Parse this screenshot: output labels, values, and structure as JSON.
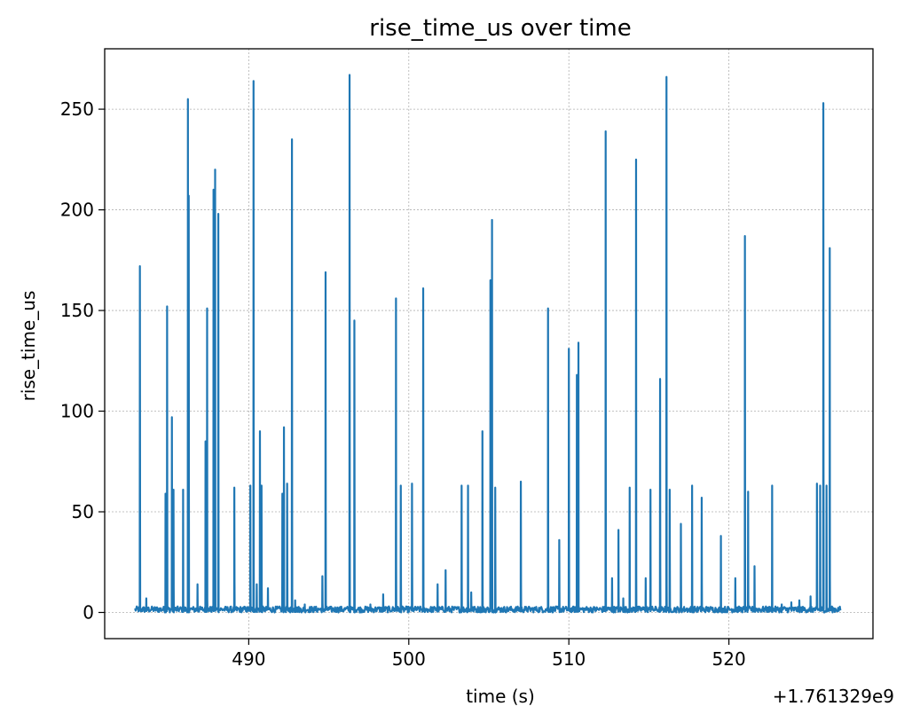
{
  "chart_data": {
    "type": "line",
    "title": "rise_time_us over time",
    "xlabel": "time (s)",
    "ylabel": "rise_time_us",
    "x_offset_label": "+1.761329e9",
    "xlim": [
      481.0,
      529.0
    ],
    "ylim": [
      -13,
      280
    ],
    "xticks": [
      490,
      500,
      510,
      520
    ],
    "yticks": [
      0,
      50,
      100,
      150,
      200,
      250
    ],
    "grid": true,
    "x_range": [
      482.9,
      527.0
    ],
    "baseline_range": [
      0,
      3
    ],
    "series": [
      {
        "color": "#1f77b4",
        "spikes": [
          [
            483.2,
            172
          ],
          [
            483.6,
            7
          ],
          [
            484.8,
            59
          ],
          [
            484.9,
            152
          ],
          [
            485.2,
            97
          ],
          [
            485.3,
            61
          ],
          [
            485.9,
            61
          ],
          [
            486.2,
            255
          ],
          [
            486.25,
            207
          ],
          [
            486.8,
            14
          ],
          [
            487.3,
            85
          ],
          [
            487.4,
            151
          ],
          [
            487.8,
            210
          ],
          [
            487.9,
            220
          ],
          [
            488.1,
            198
          ],
          [
            489.1,
            62
          ],
          [
            490.1,
            63
          ],
          [
            490.3,
            264
          ],
          [
            490.5,
            14
          ],
          [
            490.7,
            90
          ],
          [
            490.8,
            63
          ],
          [
            491.2,
            12
          ],
          [
            492.1,
            59
          ],
          [
            492.2,
            92
          ],
          [
            492.4,
            64
          ],
          [
            492.7,
            235
          ],
          [
            492.9,
            6
          ],
          [
            493.5,
            4
          ],
          [
            494.6,
            18
          ],
          [
            494.8,
            169
          ],
          [
            496.3,
            267
          ],
          [
            496.6,
            145
          ],
          [
            497.6,
            4
          ],
          [
            498.4,
            9
          ],
          [
            499.2,
            156
          ],
          [
            499.5,
            63
          ],
          [
            500.2,
            64
          ],
          [
            500.9,
            161
          ],
          [
            501.8,
            14
          ],
          [
            502.3,
            21
          ],
          [
            503.3,
            63
          ],
          [
            503.7,
            63
          ],
          [
            503.9,
            10
          ],
          [
            504.6,
            90
          ],
          [
            505.1,
            165
          ],
          [
            505.2,
            195
          ],
          [
            505.4,
            62
          ],
          [
            507.0,
            65
          ],
          [
            508.7,
            151
          ],
          [
            509.4,
            36
          ],
          [
            510.0,
            131
          ],
          [
            510.5,
            118
          ],
          [
            510.6,
            134
          ],
          [
            512.3,
            239
          ],
          [
            512.7,
            17
          ],
          [
            513.1,
            41
          ],
          [
            513.4,
            7
          ],
          [
            513.8,
            62
          ],
          [
            514.2,
            225
          ],
          [
            514.8,
            17
          ],
          [
            515.1,
            61
          ],
          [
            515.7,
            116
          ],
          [
            516.1,
            266
          ],
          [
            516.3,
            61
          ],
          [
            517.0,
            44
          ],
          [
            517.7,
            63
          ],
          [
            518.3,
            57
          ],
          [
            519.5,
            38
          ],
          [
            520.4,
            17
          ],
          [
            521.0,
            187
          ],
          [
            521.2,
            60
          ],
          [
            521.6,
            23
          ],
          [
            522.7,
            63
          ],
          [
            523.3,
            4
          ],
          [
            523.9,
            5
          ],
          [
            524.4,
            6
          ],
          [
            525.1,
            8
          ],
          [
            525.5,
            64
          ],
          [
            525.7,
            63
          ],
          [
            525.9,
            253
          ],
          [
            526.1,
            63
          ],
          [
            526.3,
            181
          ]
        ]
      }
    ]
  }
}
